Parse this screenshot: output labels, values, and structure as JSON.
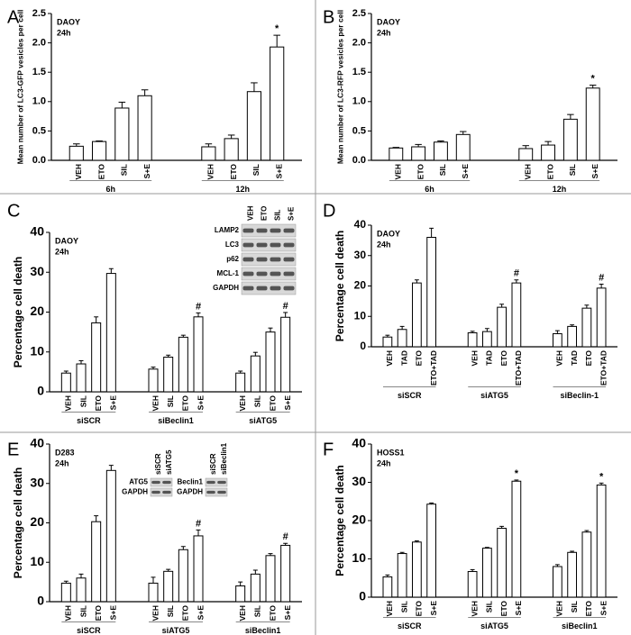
{
  "chart_data": [
    {
      "type": "bar",
      "panel": "A",
      "annotations": [
        "DAOY",
        "24h"
      ],
      "y_label": "Mean number of LC3-GFP vesicles per cell",
      "ylim": [
        0,
        2.5
      ],
      "yticks": [
        {
          "value": 0,
          "label": "0.0"
        },
        {
          "value": 0.5,
          "label": "0.5"
        },
        {
          "value": 1,
          "label": "1.0"
        },
        {
          "value": 1.5,
          "label": "1.5"
        },
        {
          "value": 2,
          "label": "2.0"
        },
        {
          "value": 2.5,
          "label": "2.5"
        }
      ],
      "groups": [
        {
          "name": "6h",
          "categories": [
            "VEH",
            "ETO",
            "SIL",
            "S+E"
          ],
          "values": [
            0.24,
            0.32,
            0.89,
            1.1
          ],
          "errors": [
            0.04,
            0.01,
            0.1,
            0.1
          ]
        },
        {
          "name": "12h",
          "categories": [
            "VEH",
            "ETO",
            "SIL",
            "S+E"
          ],
          "values": [
            0.23,
            0.37,
            1.17,
            1.93
          ],
          "errors": [
            0.05,
            0.06,
            0.15,
            0.2
          ],
          "markers": [
            null,
            null,
            null,
            "*"
          ]
        }
      ]
    },
    {
      "type": "bar",
      "panel": "B",
      "annotations": [
        "DAOY",
        "24h"
      ],
      "y_label": "Mean number of LC3-RFP vesicles per cell",
      "ylim": [
        0,
        2.5
      ],
      "yticks": [
        {
          "value": 0,
          "label": "0.0"
        },
        {
          "value": 0.5,
          "label": "0.5"
        },
        {
          "value": 1,
          "label": "1.0"
        },
        {
          "value": 1.5,
          "label": "1.5"
        },
        {
          "value": 2,
          "label": "2.0"
        },
        {
          "value": 2.5,
          "label": "2.5"
        }
      ],
      "groups": [
        {
          "name": "6h",
          "categories": [
            "VEH",
            "ETO",
            "SIL",
            "S+E"
          ],
          "values": [
            0.21,
            0.23,
            0.31,
            0.44
          ],
          "errors": [
            0.01,
            0.04,
            0.02,
            0.05
          ]
        },
        {
          "name": "12h",
          "categories": [
            "VEH",
            "ETO",
            "SIL",
            "S+E"
          ],
          "values": [
            0.2,
            0.26,
            0.7,
            1.23
          ],
          "errors": [
            0.05,
            0.06,
            0.08,
            0.05
          ],
          "markers": [
            null,
            null,
            null,
            "*"
          ]
        }
      ]
    },
    {
      "type": "bar",
      "panel": "C",
      "annotations": [
        "DAOY",
        "24h"
      ],
      "y_label": "Percentage cell death",
      "ylim": [
        0,
        40
      ],
      "yticks": [
        0,
        10,
        20,
        30,
        40
      ],
      "groups": [
        {
          "name": "siSCR",
          "categories": [
            "VEH",
            "SIL",
            "ETO",
            "S+E"
          ],
          "values": [
            4.7,
            7,
            17.3,
            29.7
          ],
          "errors": [
            0.5,
            0.8,
            1.5,
            1.2
          ]
        },
        {
          "name": "siBeclin1",
          "categories": [
            "VEH",
            "SIL",
            "ETO",
            "S+E"
          ],
          "values": [
            5.7,
            8.7,
            13.7,
            18.8
          ],
          "errors": [
            0.5,
            0.5,
            0.5,
            1
          ],
          "markers": [
            null,
            null,
            null,
            "#"
          ]
        },
        {
          "name": "siATG5",
          "categories": [
            "VEH",
            "SIL",
            "ETO",
            "S+E"
          ],
          "values": [
            4.7,
            9,
            15,
            18.7
          ],
          "errors": [
            0.5,
            0.9,
            1,
            1.2
          ],
          "markers": [
            null,
            null,
            null,
            "#"
          ]
        }
      ],
      "blots": [
        {
          "columns": [
            "VEH",
            "ETO",
            "SIL",
            "S+E"
          ],
          "rows": [
            "LAMP2",
            "LC3",
            "p62",
            "MCL-1",
            "GAPDH"
          ]
        }
      ]
    },
    {
      "type": "bar",
      "panel": "D",
      "annotations": [
        "DAOY",
        "24h"
      ],
      "y_label": "Percentage cell death",
      "ylim": [
        0,
        40
      ],
      "yticks": [
        0,
        10,
        20,
        30,
        40
      ],
      "groups": [
        {
          "name": "siSCR",
          "categories": [
            "VEH",
            "TAD",
            "ETO",
            "ETO+TAD"
          ],
          "values": [
            3.2,
            5.7,
            21,
            36
          ],
          "errors": [
            0.6,
            1,
            1,
            3
          ]
        },
        {
          "name": "siATG5",
          "categories": [
            "VEH",
            "TAD",
            "ETO",
            "ETO+TAD"
          ],
          "values": [
            4.6,
            5,
            13,
            21
          ],
          "errors": [
            0.5,
            1,
            1,
            1
          ],
          "markers": [
            null,
            null,
            null,
            "#"
          ]
        },
        {
          "name": "siBeclin-1",
          "categories": [
            "VEH",
            "TAD",
            "ETO",
            "ETO+TAD"
          ],
          "values": [
            4.3,
            6.7,
            12.7,
            19.3
          ],
          "errors": [
            1,
            0.5,
            1,
            1.3
          ],
          "markers": [
            null,
            null,
            null,
            "#"
          ]
        }
      ]
    },
    {
      "type": "bar",
      "panel": "E",
      "annotations": [
        "D283",
        "24h"
      ],
      "y_label": "Percentage cell death",
      "ylim": [
        0,
        40
      ],
      "yticks": [
        0,
        10,
        20,
        30,
        40
      ],
      "groups": [
        {
          "name": "siSCR",
          "categories": [
            "VEH",
            "SIL",
            "ETO",
            "S+E"
          ],
          "values": [
            4.7,
            6,
            20.3,
            33.3
          ],
          "errors": [
            0.5,
            1,
            1.5,
            1.3
          ]
        },
        {
          "name": "siATG5",
          "categories": [
            "VEH",
            "SIL",
            "ETO",
            "S+E"
          ],
          "values": [
            4.7,
            7.7,
            13.2,
            16.7
          ],
          "errors": [
            1.5,
            0.5,
            0.8,
            1.5
          ],
          "markers": [
            null,
            null,
            null,
            "#"
          ]
        },
        {
          "name": "siBeclin1",
          "categories": [
            "VEH",
            "SIL",
            "ETO",
            "S+E"
          ],
          "values": [
            4,
            7,
            11.7,
            14.3
          ],
          "errors": [
            1,
            1,
            0.5,
            0.5
          ],
          "markers": [
            null,
            null,
            null,
            "#"
          ]
        }
      ],
      "blots": [
        {
          "columns": [
            "siSCR",
            "siATG5"
          ],
          "rows": [
            "ATG5",
            "GAPDH"
          ]
        },
        {
          "columns": [
            "siSCR",
            "siBeclin1"
          ],
          "rows": [
            "Beclin1",
            "GAPDH"
          ]
        }
      ]
    },
    {
      "type": "bar",
      "panel": "F",
      "annotations": [
        "HOSS1",
        "24h"
      ],
      "y_label": "Percentage cell death",
      "ylim": [
        0,
        40
      ],
      "yticks": [
        0,
        10,
        20,
        30,
        40
      ],
      "groups": [
        {
          "name": "siSCR",
          "categories": [
            "VEH",
            "SIL",
            "ETO",
            "S+E"
          ],
          "values": [
            5.3,
            11.4,
            14.4,
            24.3
          ],
          "errors": [
            0.5,
            0.3,
            0.3,
            0.3
          ]
        },
        {
          "name": "siATG5",
          "categories": [
            "VEH",
            "SIL",
            "ETO",
            "S+E"
          ],
          "values": [
            6.7,
            12.8,
            18,
            30.3
          ],
          "errors": [
            0.5,
            0.2,
            0.5,
            0.3
          ],
          "markers": [
            null,
            null,
            null,
            "*"
          ]
        },
        {
          "name": "siBeclin1",
          "categories": [
            "VEH",
            "SIL",
            "ETO",
            "S+E"
          ],
          "values": [
            8,
            11.7,
            17,
            29.3
          ],
          "errors": [
            0.5,
            0.3,
            0.4,
            0.5
          ],
          "markers": [
            null,
            null,
            null,
            "*"
          ]
        }
      ]
    }
  ]
}
